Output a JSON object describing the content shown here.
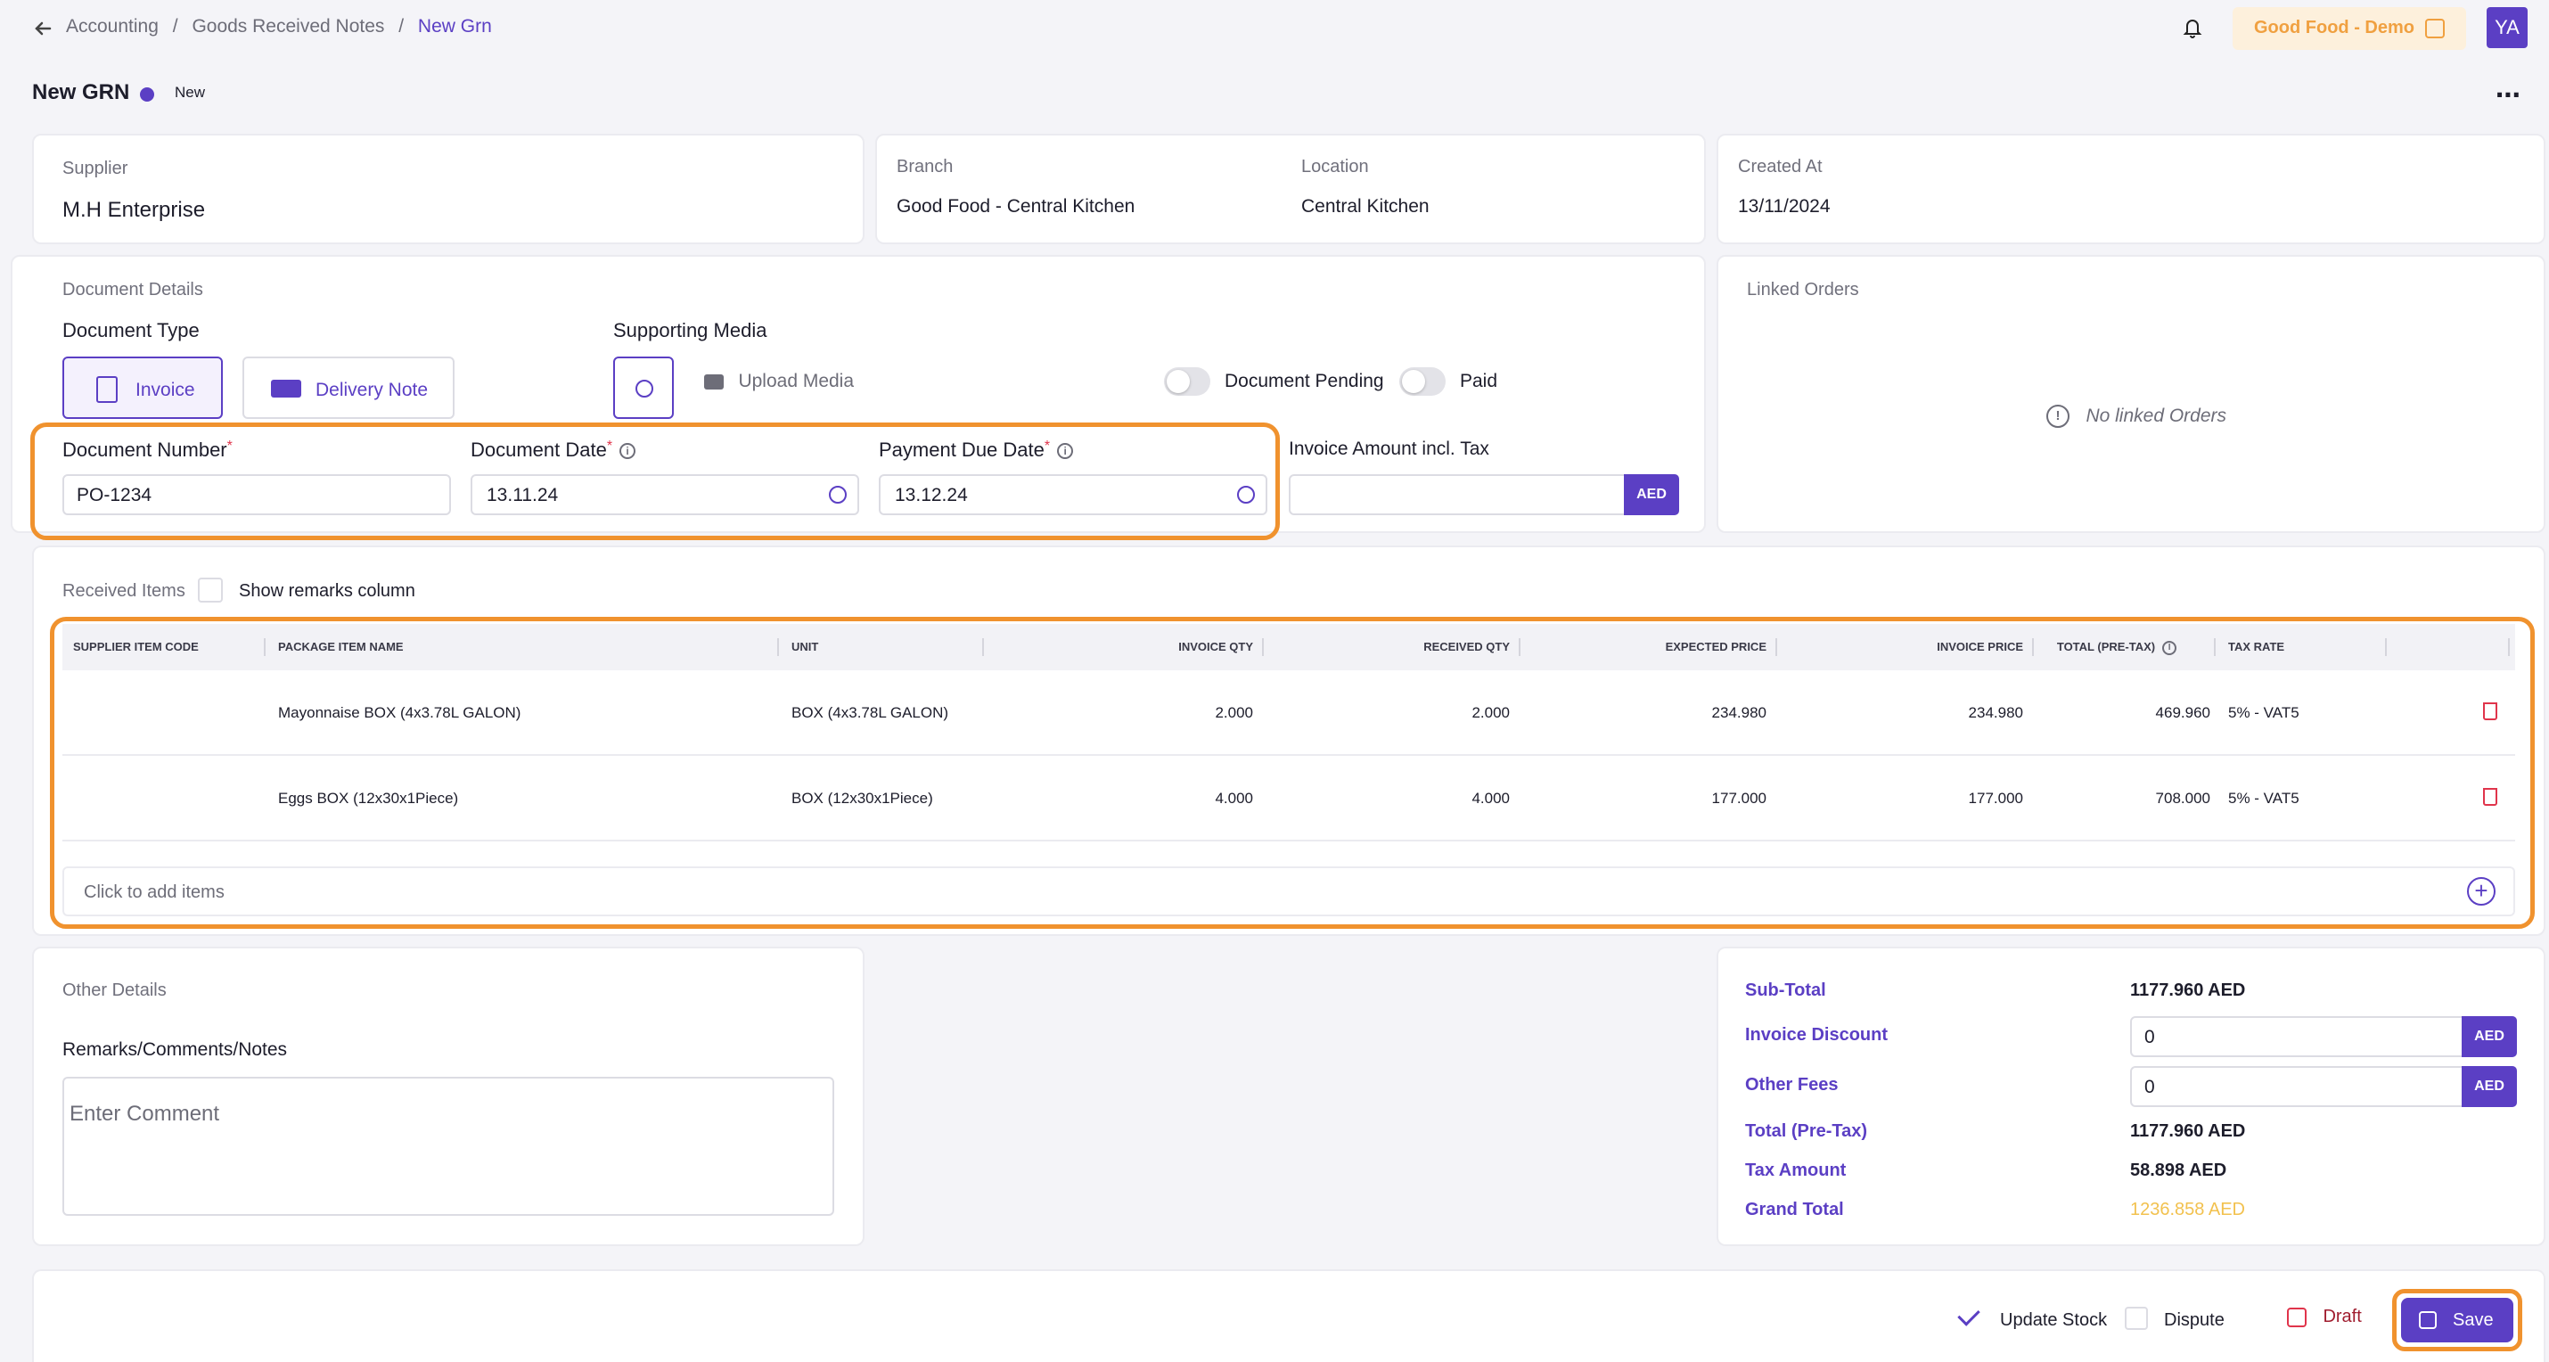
{
  "breadcrumb": {
    "items": [
      "Accounting",
      "Goods Received Notes"
    ],
    "current": "New Grn",
    "separator": "/"
  },
  "header": {
    "org_name": "Good Food - Demo",
    "avatar_initials": "YA"
  },
  "page": {
    "title": "New GRN",
    "status": "New"
  },
  "supplier": {
    "label": "Supplier",
    "value": "M.H Enterprise"
  },
  "branch": {
    "label": "Branch",
    "value": "Good Food - Central Kitchen"
  },
  "location": {
    "label": "Location",
    "value": "Central Kitchen"
  },
  "created": {
    "label": "Created At",
    "value": "13/11/2024"
  },
  "document": {
    "section_title": "Document Details",
    "type_label": "Document Type",
    "invoice_label": "Invoice",
    "delivery_label": "Delivery Note",
    "media_label": "Supporting Media",
    "upload_label": "Upload Media",
    "pending_label": "Document Pending",
    "paid_label": "Paid",
    "number_label": "Document Number",
    "number_value": "PO-1234",
    "date_label": "Document Date",
    "date_value": "13.11.24",
    "due_label": "Payment Due Date",
    "due_value": "13.12.24",
    "amount_label": "Invoice Amount incl. Tax",
    "amount_value": "",
    "currency": "AED",
    "required_mark": "*"
  },
  "linked": {
    "title": "Linked Orders",
    "empty": "No linked Orders"
  },
  "items": {
    "section_title": "Received Items",
    "remarks_toggle": "Show remarks column",
    "columns": [
      "Supplier Item Code",
      "Package Item Name",
      "Unit",
      "Invoice QTY",
      "Received QTY",
      "Expected Price",
      "Invoice Price",
      "Total (Pre-Tax)",
      "Tax Rate"
    ],
    "rows": [
      {
        "code": "",
        "name": "Mayonnaise BOX (4x3.78L GALON)",
        "unit": "BOX (4x3.78L GALON)",
        "invoice_qty": "2.000",
        "received_qty": "2.000",
        "expected_price": "234.980",
        "invoice_price": "234.980",
        "total": "469.960",
        "tax": "5% - VAT5"
      },
      {
        "code": "",
        "name": "Eggs BOX (12x30x1Piece)",
        "unit": "BOX (12x30x1Piece)",
        "invoice_qty": "4.000",
        "received_qty": "4.000",
        "expected_price": "177.000",
        "invoice_price": "177.000",
        "total": "708.000",
        "tax": "5% - VAT5"
      }
    ],
    "add_label": "Click to add items"
  },
  "other": {
    "title": "Other Details",
    "remarks_label": "Remarks/Comments/Notes",
    "remarks_placeholder": "Enter Comment"
  },
  "summary": {
    "subtotal_label": "Sub-Total",
    "subtotal_value": "1177.960 AED",
    "discount_label": "Invoice Discount",
    "discount_value": "0",
    "fees_label": "Other Fees",
    "fees_value": "0",
    "pretax_label": "Total (Pre-Tax)",
    "pretax_value": "1177.960 AED",
    "tax_label": "Tax Amount",
    "tax_value": "58.898 AED",
    "grand_label": "Grand Total",
    "grand_value": "1236.858 AED",
    "currency": "AED"
  },
  "footer": {
    "update_stock": "Update Stock",
    "dispute": "Dispute",
    "draft": "Draft",
    "save": "Save"
  },
  "colors": {
    "accent": "#5b3fc4",
    "highlight": "#f0922e",
    "danger": "#e0344b",
    "grand_total": "#f2c14e"
  }
}
